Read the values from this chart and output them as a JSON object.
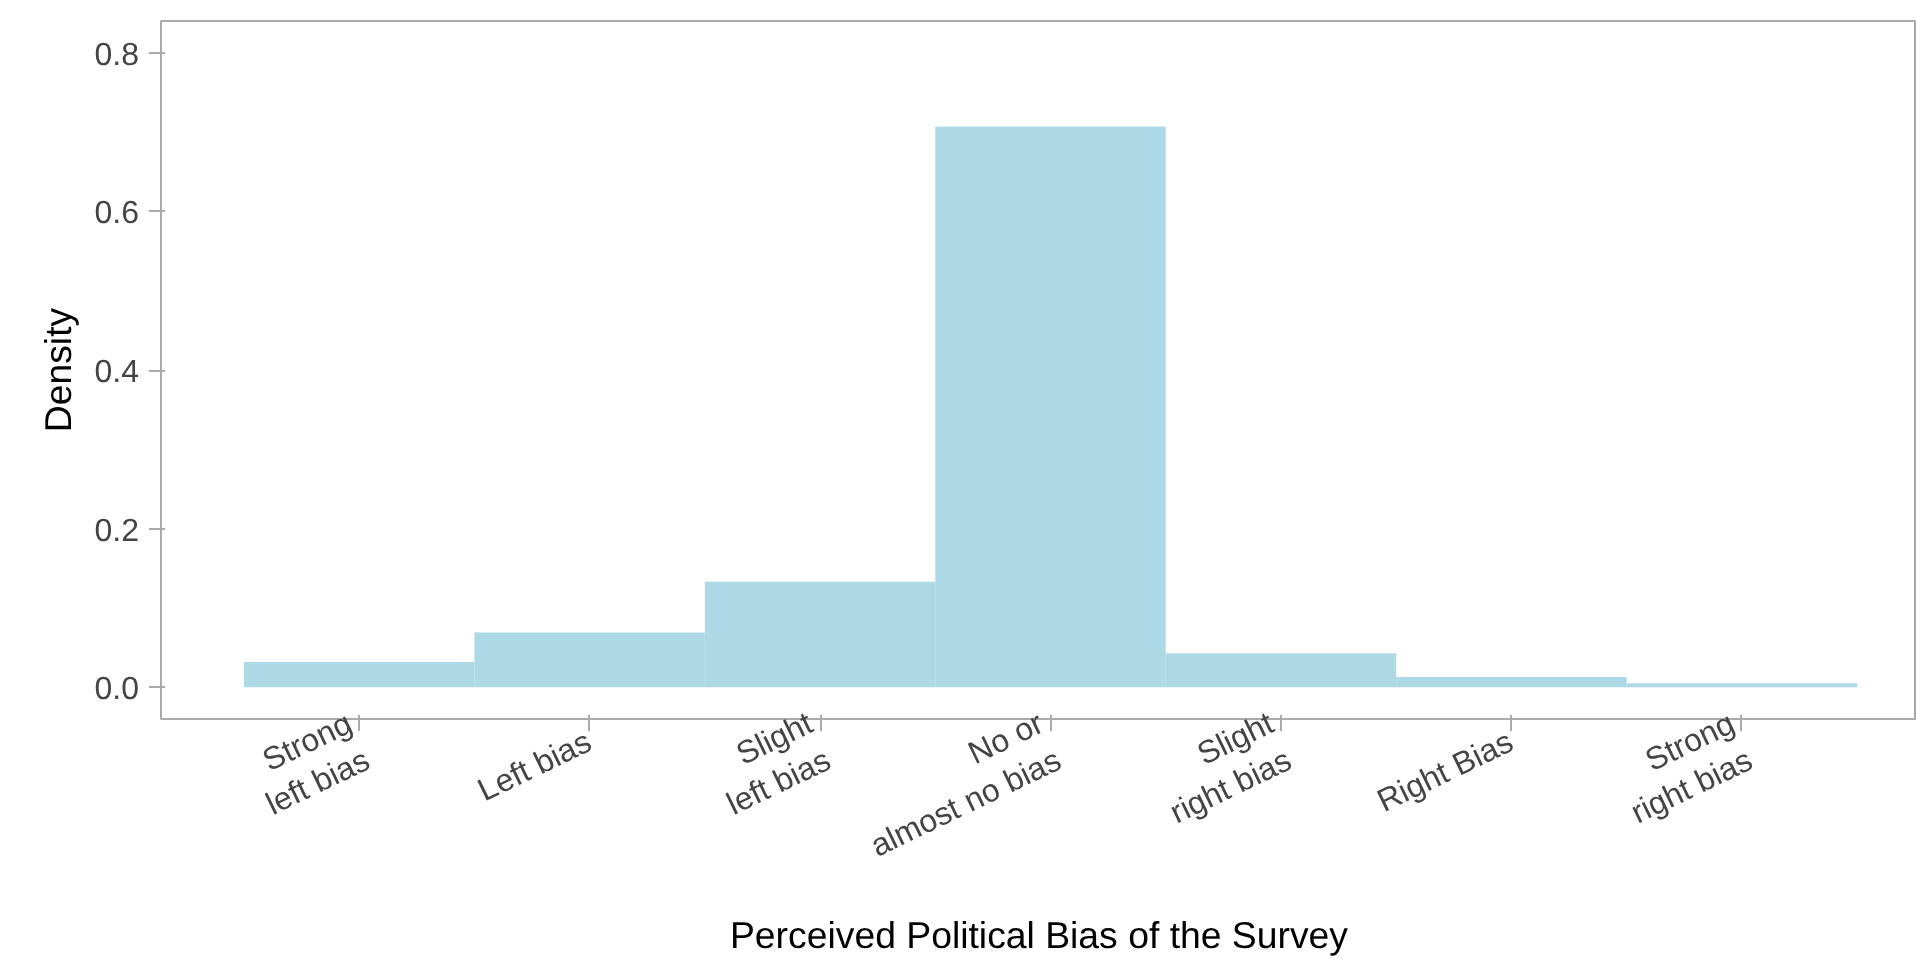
{
  "chart_data": {
    "type": "bar",
    "xlabel": "Perceived Political Bias of the Survey",
    "ylabel": "Density",
    "categories": [
      "Strong\nleft bias",
      "Left bias",
      "Slight\nleft bias",
      "No or\nalmost no bias",
      "Slight\nright bias",
      "Right Bias",
      "Strong\nright bias"
    ],
    "values": [
      0.032,
      0.069,
      0.133,
      0.707,
      0.043,
      0.013,
      0.005
    ],
    "color": "#add8e6",
    "ylim": [
      -0.04,
      0.84
    ],
    "yticks": [
      {
        "value": 0,
        "label": "0.0"
      },
      {
        "value": 0.2,
        "label": "0.2"
      },
      {
        "value": 0.4,
        "label": "0.4"
      },
      {
        "value": 0.6,
        "label": "0.6"
      },
      {
        "value": 0.8,
        "label": "0.8"
      }
    ],
    "grid": false
  }
}
